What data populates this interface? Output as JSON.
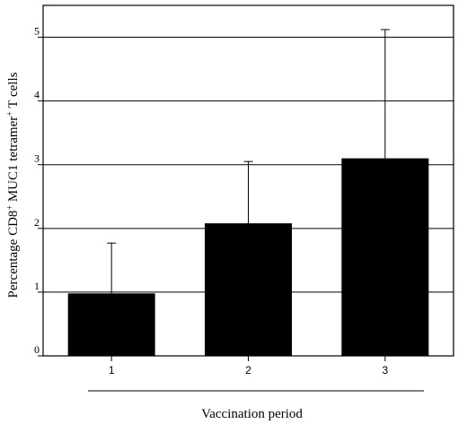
{
  "chart_data": {
    "type": "bar",
    "categories": [
      "1",
      "2",
      "3"
    ],
    "values": [
      0.98,
      2.08,
      3.1
    ],
    "error_upper": [
      1.77,
      3.05,
      5.12
    ],
    "xlabel": "Vaccination period",
    "ylabel": {
      "pre": "Percentage CD8",
      "sup1": "+",
      "mid": " MUC1 tetramer",
      "sup2": "+",
      "post": " T cells"
    },
    "ylim": [
      0,
      5.5
    ],
    "yticks": [
      "0",
      "1",
      "2",
      "3",
      "4",
      "5"
    ],
    "grid": true,
    "bar_color": "#000000"
  }
}
